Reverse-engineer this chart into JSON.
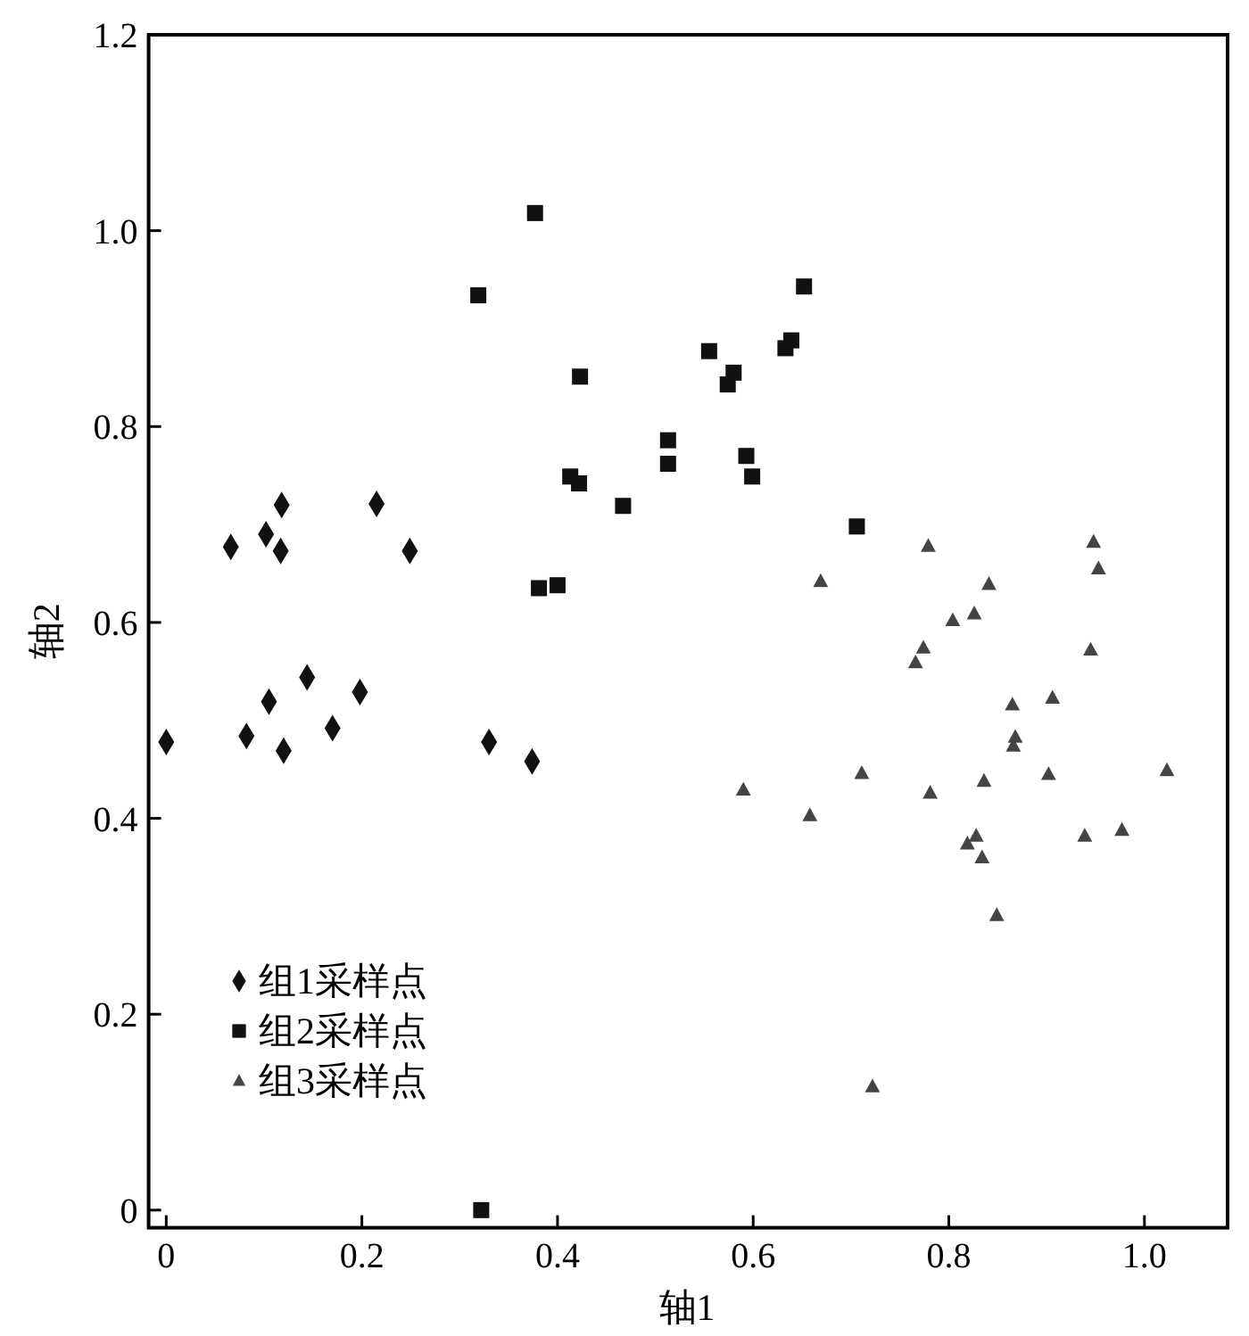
{
  "chart_data": {
    "type": "scatter",
    "xlabel": "轴1",
    "ylabel": "轴2",
    "xlim": [
      -0.018,
      1.085
    ],
    "ylim": [
      -0.018,
      1.2
    ],
    "xticks": [
      0,
      0.2,
      0.4,
      0.6,
      0.8,
      {
        "value": 1,
        "label": "1.0"
      }
    ],
    "yticks": [
      0,
      0.2,
      0.4,
      0.6,
      0.8,
      {
        "value": 1,
        "label": "1.0"
      },
      1.2
    ],
    "grid": false,
    "legend": "bottom left",
    "series": [
      {
        "name": "组1采样点",
        "color": "#111111",
        "marker": "diamond",
        "x": [
          0,
          0.066,
          0.082,
          0.102,
          0.105,
          0.117,
          0.118,
          0.12,
          0.144,
          0.17,
          0.198,
          0.215,
          0.249,
          0.33,
          0.374
        ],
        "values": [
          0.478,
          0.677,
          0.484,
          0.69,
          0.519,
          0.673,
          0.72,
          0.469,
          0.544,
          0.492,
          0.529,
          0.721,
          0.673,
          0.478,
          0.458
        ]
      },
      {
        "name": "组2采样点",
        "color": "#111111",
        "marker": "square",
        "x": [
          0.377,
          0.319,
          0.423,
          0.513,
          0.513,
          0.413,
          0.422,
          0.467,
          0.381,
          0.4,
          0.652,
          0.555,
          0.639,
          0.633,
          0.58,
          0.574,
          0.593,
          0.599,
          0.706,
          0.322
        ],
        "values": [
          1.018,
          0.934,
          0.851,
          0.786,
          0.762,
          0.749,
          0.742,
          0.719,
          0.635,
          0.638,
          0.943,
          0.877,
          0.888,
          0.88,
          0.855,
          0.843,
          0.77,
          0.749,
          0.698,
          0
        ]
      },
      {
        "name": "组3采样点",
        "color": "#444444",
        "marker": "triangle",
        "x": [
          0.779,
          0.948,
          0.953,
          0.669,
          0.841,
          0.804,
          0.826,
          0.774,
          0.766,
          0.945,
          0.865,
          0.906,
          0.868,
          0.866,
          0.711,
          0.59,
          0.781,
          0.836,
          0.902,
          1.023,
          0.658,
          0.828,
          0.819,
          0.939,
          0.977,
          0.834,
          0.849,
          0.722
        ],
        "values": [
          0.678,
          0.682,
          0.655,
          0.642,
          0.639,
          0.602,
          0.609,
          0.574,
          0.559,
          0.572,
          0.516,
          0.523,
          0.483,
          0.474,
          0.446,
          0.429,
          0.426,
          0.438,
          0.445,
          0.449,
          0.403,
          0.382,
          0.374,
          0.382,
          0.388,
          0.36,
          0.301,
          0.126
        ]
      }
    ]
  }
}
